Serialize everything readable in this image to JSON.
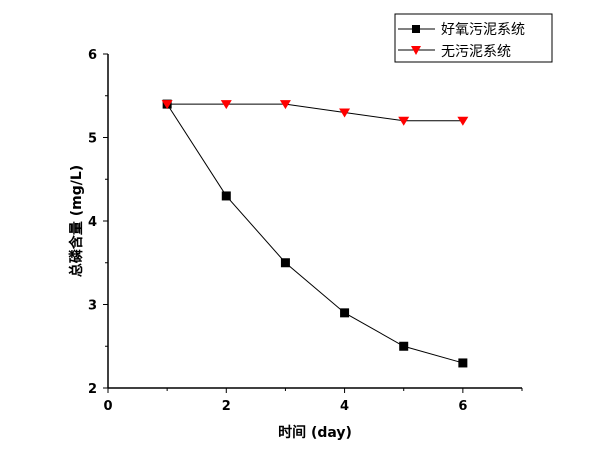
{
  "chart_data": {
    "type": "line",
    "title": "",
    "xlabel": "时间 (day)",
    "ylabel": "总磷含量 (mg/L)",
    "xlim": [
      0,
      7
    ],
    "ylim": [
      2,
      6
    ],
    "xticks": [
      0,
      2,
      4,
      6
    ],
    "yticks": [
      2,
      3,
      4,
      5,
      6
    ],
    "grid": false,
    "legend_position": "top-right",
    "x": [
      1,
      2,
      3,
      4,
      5,
      6
    ],
    "series": [
      {
        "name": "好氧污泥系统",
        "marker": "square",
        "color": "#000000",
        "values": [
          5.4,
          4.3,
          3.5,
          2.9,
          2.5,
          2.3
        ]
      },
      {
        "name": "无污泥系统",
        "marker": "triangle-down",
        "color": "#ff0000",
        "values": [
          5.4,
          5.4,
          5.4,
          5.3,
          5.2,
          5.2
        ]
      }
    ]
  }
}
